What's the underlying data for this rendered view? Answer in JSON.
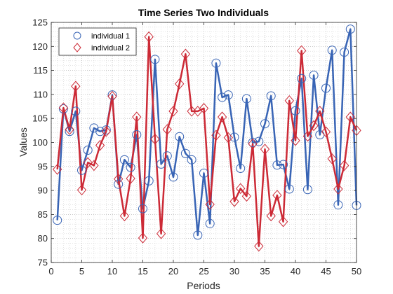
{
  "chart_data": {
    "type": "line",
    "title": "Time Series Two Individuals",
    "xlabel": "Periods",
    "ylabel": "Values",
    "xlim": [
      0,
      50
    ],
    "ylim": [
      75,
      125
    ],
    "xticks": [
      0,
      5,
      10,
      15,
      20,
      25,
      30,
      35,
      40,
      45,
      50
    ],
    "yticks": [
      75,
      80,
      85,
      90,
      95,
      100,
      105,
      110,
      115,
      120,
      125
    ],
    "grid": "major and minor, dotted",
    "legend_position": "top-left",
    "x": [
      1,
      2,
      3,
      4,
      5,
      6,
      7,
      8,
      9,
      10,
      11,
      12,
      13,
      14,
      15,
      16,
      17,
      18,
      19,
      20,
      21,
      22,
      23,
      24,
      25,
      26,
      27,
      28,
      29,
      30,
      31,
      32,
      33,
      34,
      35,
      36,
      37,
      38,
      39,
      40,
      41,
      42,
      43,
      44,
      45,
      46,
      47,
      48,
      49,
      50
    ],
    "series": [
      {
        "name": "individual 1",
        "color": "#3864b5",
        "marker": "circle",
        "values": [
          83.8,
          107.0,
          102.3,
          106.5,
          94.2,
          98.4,
          103.0,
          102.3,
          102.6,
          109.9,
          91.3,
          96.4,
          94.8,
          101.6,
          86.2,
          92.0,
          117.3,
          95.5,
          97.2,
          92.8,
          101.2,
          97.7,
          96.4,
          80.7,
          93.6,
          83.1,
          116.5,
          109.4,
          109.9,
          101.1,
          94.6,
          109.1,
          100.0,
          100.2,
          103.9,
          109.7,
          95.3,
          95.4,
          90.3,
          106.6,
          113.3,
          90.2,
          114.0,
          101.6,
          111.3,
          119.2,
          87.0,
          118.8,
          123.6,
          86.9
        ]
      },
      {
        "name": "individual 2",
        "color": "#cc2a36",
        "marker": "diamond",
        "values": [
          94.4,
          107.2,
          102.7,
          111.7,
          90.1,
          95.8,
          95.2,
          99.4,
          102.3,
          109.6,
          92.4,
          84.7,
          92.5,
          105.3,
          80.1,
          122.0,
          100.7,
          81.0,
          102.7,
          106.5,
          112.2,
          118.4,
          106.5,
          106.5,
          107.1,
          87.1,
          101.5,
          105.3,
          101.0,
          87.7,
          90.4,
          88.8,
          99.7,
          78.4,
          98.6,
          84.7,
          89.0,
          83.5,
          108.7,
          100.4,
          119.1,
          101.3,
          103.5,
          106.5,
          102.2,
          96.6,
          90.3,
          95.2,
          105.3,
          102.5
        ]
      }
    ]
  }
}
